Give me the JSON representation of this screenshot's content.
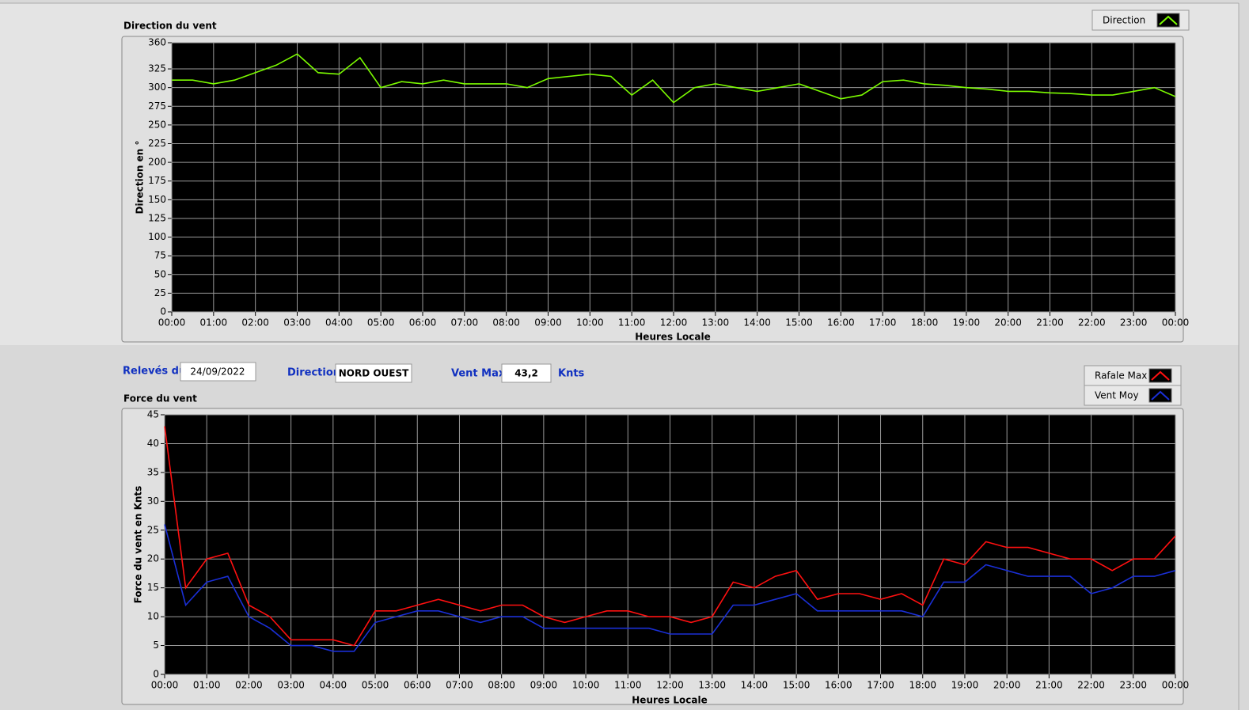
{
  "info": {
    "date_label": "Relevés du",
    "date": "24/09/2022",
    "direction_label": "Direction",
    "direction": "NORD OUEST",
    "vent_max_label": "Vent Max",
    "vent_max": "43,2",
    "unit": "Knts"
  },
  "chart_data": [
    {
      "type": "line",
      "title": "Direction du vent",
      "x_label": "Heures Locale",
      "y_label": "Direction en °",
      "grid": true,
      "legend": "top-right",
      "x": [
        0,
        0.5,
        1,
        1.5,
        2,
        2.5,
        3,
        3.5,
        4,
        4.5,
        5,
        5.5,
        6,
        6.5,
        7,
        7.5,
        8,
        8.5,
        9,
        9.5,
        10,
        10.5,
        11,
        11.5,
        12,
        12.5,
        13,
        13.5,
        14,
        14.5,
        15,
        15.5,
        16,
        16.5,
        17,
        17.5,
        18,
        18.5,
        19,
        19.5,
        20,
        20.5,
        21,
        21.5,
        22,
        22.5,
        23,
        23.5,
        24
      ],
      "xlim": [
        0,
        24
      ],
      "xticks": [
        {
          "value": 0,
          "label": "00:00"
        },
        {
          "value": 1,
          "label": "01:00"
        },
        {
          "value": 2,
          "label": "02:00"
        },
        {
          "value": 3,
          "label": "03:00"
        },
        {
          "value": 4,
          "label": "04:00"
        },
        {
          "value": 5,
          "label": "05:00"
        },
        {
          "value": 6,
          "label": "06:00"
        },
        {
          "value": 7,
          "label": "07:00"
        },
        {
          "value": 8,
          "label": "08:00"
        },
        {
          "value": 9,
          "label": "09:00"
        },
        {
          "value": 10,
          "label": "10:00"
        },
        {
          "value": 11,
          "label": "11:00"
        },
        {
          "value": 12,
          "label": "12:00"
        },
        {
          "value": 13,
          "label": "13:00"
        },
        {
          "value": 14,
          "label": "14:00"
        },
        {
          "value": 15,
          "label": "15:00"
        },
        {
          "value": 16,
          "label": "16:00"
        },
        {
          "value": 17,
          "label": "17:00"
        },
        {
          "value": 18,
          "label": "18:00"
        },
        {
          "value": 19,
          "label": "19:00"
        },
        {
          "value": 20,
          "label": "20:00"
        },
        {
          "value": 21,
          "label": "21:00"
        },
        {
          "value": 22,
          "label": "22:00"
        },
        {
          "value": 23,
          "label": "23:00"
        },
        {
          "value": 24,
          "label": "00:00"
        }
      ],
      "ylim": [
        0,
        360
      ],
      "yticks": [
        0,
        25,
        50,
        75,
        100,
        125,
        150,
        175,
        200,
        225,
        250,
        275,
        300,
        325,
        360
      ],
      "series": [
        {
          "name": "Direction",
          "color": "#7cfc00",
          "values": [
            310,
            310,
            305,
            310,
            320,
            330,
            345,
            320,
            318,
            340,
            300,
            308,
            305,
            310,
            305,
            305,
            305,
            300,
            312,
            315,
            318,
            315,
            290,
            310,
            280,
            300,
            305,
            300,
            295,
            300,
            305,
            295,
            285,
            290,
            308,
            310,
            305,
            303,
            300,
            298,
            295,
            295,
            293,
            292,
            290,
            290,
            295,
            300,
            288
          ]
        }
      ]
    },
    {
      "type": "line",
      "title": "Force du vent",
      "x_label": "Heures Locale",
      "y_label": "Force du vent en Knts",
      "grid": true,
      "legend": "top-right",
      "x": [
        0,
        0.5,
        1,
        1.5,
        2,
        2.5,
        3,
        3.5,
        4,
        4.5,
        5,
        5.5,
        6,
        6.5,
        7,
        7.5,
        8,
        8.5,
        9,
        9.5,
        10,
        10.5,
        11,
        11.5,
        12,
        12.5,
        13,
        13.5,
        14,
        14.5,
        15,
        15.5,
        16,
        16.5,
        17,
        17.5,
        18,
        18.5,
        19,
        19.5,
        20,
        20.5,
        21,
        21.5,
        22,
        22.5,
        23,
        23.5,
        24
      ],
      "xlim": [
        0,
        24
      ],
      "xticks": [
        {
          "value": 0,
          "label": "00:00"
        },
        {
          "value": 1,
          "label": "01:00"
        },
        {
          "value": 2,
          "label": "02:00"
        },
        {
          "value": 3,
          "label": "03:00"
        },
        {
          "value": 4,
          "label": "04:00"
        },
        {
          "value": 5,
          "label": "05:00"
        },
        {
          "value": 6,
          "label": "06:00"
        },
        {
          "value": 7,
          "label": "07:00"
        },
        {
          "value": 8,
          "label": "08:00"
        },
        {
          "value": 9,
          "label": "09:00"
        },
        {
          "value": 10,
          "label": "10:00"
        },
        {
          "value": 11,
          "label": "11:00"
        },
        {
          "value": 12,
          "label": "12:00"
        },
        {
          "value": 13,
          "label": "13:00"
        },
        {
          "value": 14,
          "label": "14:00"
        },
        {
          "value": 15,
          "label": "15:00"
        },
        {
          "value": 16,
          "label": "16:00"
        },
        {
          "value": 17,
          "label": "17:00"
        },
        {
          "value": 18,
          "label": "18:00"
        },
        {
          "value": 19,
          "label": "19:00"
        },
        {
          "value": 20,
          "label": "20:00"
        },
        {
          "value": 21,
          "label": "21:00"
        },
        {
          "value": 22,
          "label": "22:00"
        },
        {
          "value": 23,
          "label": "23:00"
        },
        {
          "value": 24,
          "label": "00:00"
        }
      ],
      "ylim": [
        0,
        45
      ],
      "yticks": [
        0,
        5,
        10,
        15,
        20,
        25,
        30,
        35,
        40,
        45
      ],
      "series": [
        {
          "name": "Rafale Max",
          "color": "#ff1010",
          "values": [
            43,
            15,
            20,
            21,
            12,
            10,
            6,
            6,
            6,
            5,
            11,
            11,
            12,
            13,
            12,
            11,
            12,
            12,
            10,
            9,
            10,
            11,
            11,
            10,
            10,
            9,
            10,
            16,
            15,
            17,
            18,
            13,
            14,
            14,
            13,
            14,
            12,
            20,
            19,
            23,
            22,
            22,
            21,
            20,
            20,
            18,
            20,
            20,
            24
          ]
        },
        {
          "name": "Vent Moy",
          "color": "#1a2fd6",
          "values": [
            26,
            12,
            16,
            17,
            10,
            8,
            5,
            5,
            4,
            4,
            9,
            10,
            11,
            11,
            10,
            9,
            10,
            10,
            8,
            8,
            8,
            8,
            8,
            8,
            7,
            7,
            7,
            12,
            12,
            13,
            14,
            11,
            11,
            11,
            11,
            11,
            10,
            16,
            16,
            19,
            18,
            17,
            17,
            17,
            14,
            15,
            17,
            17,
            18
          ]
        }
      ]
    }
  ]
}
